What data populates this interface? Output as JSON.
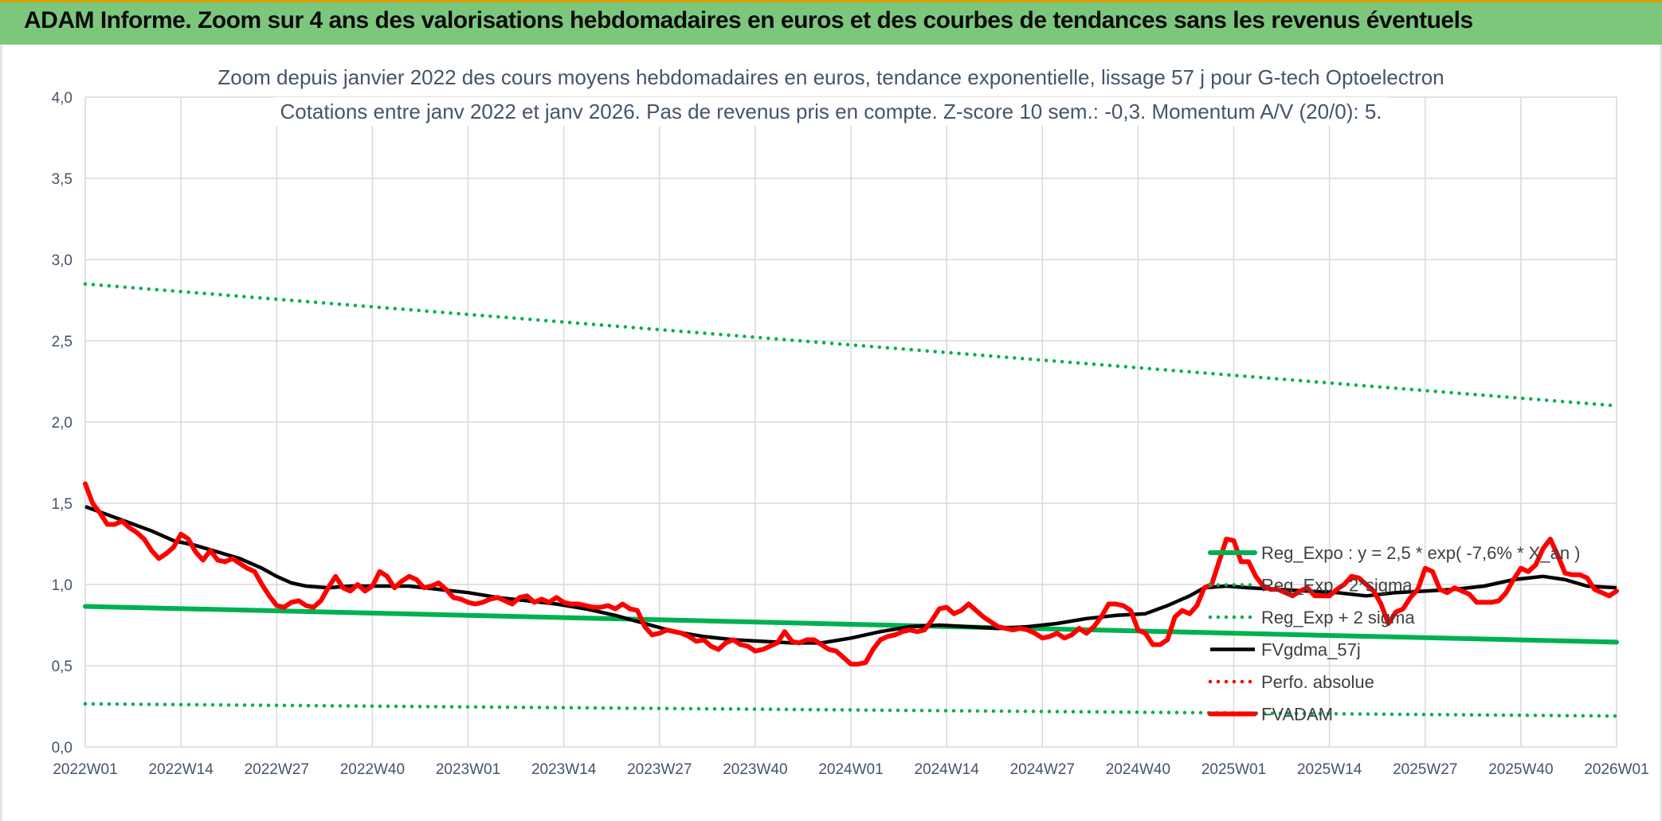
{
  "banner": {
    "title": "ADAM Informe. Zoom sur 4 ans des valorisations hebdomadaires en euros et des courbes de tendances sans les revenus éventuels"
  },
  "colors": {
    "regExpo": "#00b050",
    "fvgdma": "#000000",
    "perfo": "#ff0000",
    "fvadam": "#ff0000",
    "grid": "#d9d9d9",
    "banner": "#7dc77d"
  },
  "chart_data": {
    "type": "line",
    "title": [
      "Zoom depuis janvier 2022 des cours moyens hebdomadaires en euros, tendance exponentielle, lissage 57 j pour G-tech Optoelectron",
      "Cotations entre janv 2022 et janv 2026. Pas de revenus pris en compte. Z-score 10 sem.: -0,3. Momentum A/V (20/0): 5."
    ],
    "xlabel": "",
    "ylabel": "",
    "ylim": [
      0,
      4
    ],
    "yticks": [
      0,
      0.5,
      1,
      1.5,
      2,
      2.5,
      3,
      3.5,
      4
    ],
    "ytick_labels": [
      "0,0",
      "0,5",
      "1,0",
      "1,5",
      "2,0",
      "2,5",
      "3,0",
      "3,5",
      "4,0"
    ],
    "x_categories": [
      "2022W01",
      "2022W14",
      "2022W27",
      "2022W40",
      "2023W01",
      "2023W14",
      "2023W27",
      "2023W40",
      "2024W01",
      "2024W14",
      "2024W27",
      "2024W40",
      "2025W01",
      "2025W14",
      "2025W27",
      "2025W40",
      "2026W01"
    ],
    "x_weeks_total": 209,
    "grid": true,
    "legend_position": "right-middle",
    "series": [
      {
        "name": "Reg_Expo : y = 2,5 * exp( -7,6% * X_an )",
        "style": "solid",
        "color": "#00b050",
        "points": [
          [
            0,
            0.865
          ],
          [
            208,
            0.645
          ]
        ]
      },
      {
        "name": "Reg_Exp - 2*sigma",
        "style": "dotted",
        "color": "#00b050",
        "points": [
          [
            0,
            0.265
          ],
          [
            208,
            0.19
          ]
        ]
      },
      {
        "name": "Reg_Exp + 2 sigma",
        "style": "dotted",
        "color": "#00b050",
        "points": [
          [
            0,
            2.85
          ],
          [
            208,
            2.1
          ]
        ]
      },
      {
        "name": "FVgdma_57j",
        "style": "solid",
        "color": "#000000",
        "points": [
          [
            0,
            1.48
          ],
          [
            3,
            1.43
          ],
          [
            6,
            1.38
          ],
          [
            9,
            1.33
          ],
          [
            12,
            1.27
          ],
          [
            15,
            1.24
          ],
          [
            18,
            1.2
          ],
          [
            21,
            1.16
          ],
          [
            24,
            1.1
          ],
          [
            26,
            1.05
          ],
          [
            28,
            1.01
          ],
          [
            30,
            0.99
          ],
          [
            33,
            0.98
          ],
          [
            36,
            0.99
          ],
          [
            40,
            0.99
          ],
          [
            44,
            0.99
          ],
          [
            48,
            0.97
          ],
          [
            52,
            0.95
          ],
          [
            56,
            0.92
          ],
          [
            60,
            0.9
          ],
          [
            64,
            0.88
          ],
          [
            68,
            0.85
          ],
          [
            72,
            0.81
          ],
          [
            76,
            0.76
          ],
          [
            80,
            0.71
          ],
          [
            84,
            0.68
          ],
          [
            88,
            0.66
          ],
          [
            92,
            0.65
          ],
          [
            96,
            0.64
          ],
          [
            100,
            0.64
          ],
          [
            104,
            0.67
          ],
          [
            108,
            0.71
          ],
          [
            112,
            0.74
          ],
          [
            116,
            0.75
          ],
          [
            120,
            0.74
          ],
          [
            124,
            0.73
          ],
          [
            128,
            0.74
          ],
          [
            132,
            0.76
          ],
          [
            136,
            0.79
          ],
          [
            140,
            0.81
          ],
          [
            144,
            0.82
          ],
          [
            147,
            0.87
          ],
          [
            150,
            0.93
          ],
          [
            152,
            0.98
          ],
          [
            155,
            0.99
          ],
          [
            158,
            0.98
          ],
          [
            162,
            0.97
          ],
          [
            166,
            0.96
          ],
          [
            170,
            0.95
          ],
          [
            174,
            0.93
          ],
          [
            178,
            0.95
          ],
          [
            182,
            0.96
          ],
          [
            186,
            0.97
          ],
          [
            190,
            0.99
          ],
          [
            194,
            1.03
          ],
          [
            198,
            1.05
          ],
          [
            201,
            1.03
          ],
          [
            204,
            0.99
          ],
          [
            208,
            0.98
          ]
        ]
      },
      {
        "name": "Perfo. absolue",
        "style": "dotted",
        "color": "#ff0000",
        "points": []
      },
      {
        "name": "FVADAM",
        "style": "solid",
        "color": "#ff0000",
        "points": [
          [
            0,
            1.62
          ],
          [
            1,
            1.5
          ],
          [
            2,
            1.44
          ],
          [
            3,
            1.37
          ],
          [
            4,
            1.37
          ],
          [
            5,
            1.39
          ],
          [
            6,
            1.35
          ],
          [
            7,
            1.32
          ],
          [
            8,
            1.28
          ],
          [
            9,
            1.21
          ],
          [
            10,
            1.16
          ],
          [
            11,
            1.19
          ],
          [
            12,
            1.23
          ],
          [
            13,
            1.31
          ],
          [
            14,
            1.28
          ],
          [
            15,
            1.2
          ],
          [
            16,
            1.15
          ],
          [
            17,
            1.21
          ],
          [
            18,
            1.15
          ],
          [
            19,
            1.14
          ],
          [
            20,
            1.16
          ],
          [
            21,
            1.13
          ],
          [
            22,
            1.1
          ],
          [
            23,
            1.08
          ],
          [
            24,
            1.0
          ],
          [
            25,
            0.93
          ],
          [
            26,
            0.87
          ],
          [
            27,
            0.86
          ],
          [
            28,
            0.89
          ],
          [
            29,
            0.9
          ],
          [
            30,
            0.87
          ],
          [
            31,
            0.86
          ],
          [
            32,
            0.9
          ],
          [
            33,
            0.98
          ],
          [
            34,
            1.05
          ],
          [
            35,
            0.98
          ],
          [
            36,
            0.96
          ],
          [
            37,
            1.0
          ],
          [
            38,
            0.96
          ],
          [
            39,
            0.99
          ],
          [
            40,
            1.08
          ],
          [
            41,
            1.05
          ],
          [
            42,
            0.98
          ],
          [
            43,
            1.02
          ],
          [
            44,
            1.05
          ],
          [
            45,
            1.03
          ],
          [
            46,
            0.98
          ],
          [
            47,
            0.99
          ],
          [
            48,
            1.01
          ],
          [
            49,
            0.97
          ],
          [
            50,
            0.92
          ],
          [
            51,
            0.91
          ],
          [
            52,
            0.89
          ],
          [
            53,
            0.88
          ],
          [
            54,
            0.89
          ],
          [
            55,
            0.91
          ],
          [
            56,
            0.92
          ],
          [
            57,
            0.9
          ],
          [
            58,
            0.88
          ],
          [
            59,
            0.92
          ],
          [
            60,
            0.93
          ],
          [
            61,
            0.89
          ],
          [
            62,
            0.91
          ],
          [
            63,
            0.89
          ],
          [
            64,
            0.92
          ],
          [
            65,
            0.89
          ],
          [
            66,
            0.88
          ],
          [
            67,
            0.88
          ],
          [
            68,
            0.87
          ],
          [
            69,
            0.86
          ],
          [
            70,
            0.86
          ],
          [
            71,
            0.87
          ],
          [
            72,
            0.85
          ],
          [
            73,
            0.88
          ],
          [
            74,
            0.85
          ],
          [
            75,
            0.84
          ],
          [
            76,
            0.74
          ],
          [
            77,
            0.69
          ],
          [
            78,
            0.7
          ],
          [
            79,
            0.72
          ],
          [
            80,
            0.71
          ],
          [
            81,
            0.7
          ],
          [
            82,
            0.68
          ],
          [
            83,
            0.65
          ],
          [
            84,
            0.66
          ],
          [
            85,
            0.62
          ],
          [
            86,
            0.6
          ],
          [
            87,
            0.64
          ],
          [
            88,
            0.66
          ],
          [
            89,
            0.63
          ],
          [
            90,
            0.62
          ],
          [
            91,
            0.59
          ],
          [
            92,
            0.6
          ],
          [
            93,
            0.62
          ],
          [
            94,
            0.64
          ],
          [
            95,
            0.71
          ],
          [
            96,
            0.65
          ],
          [
            97,
            0.64
          ],
          [
            98,
            0.66
          ],
          [
            99,
            0.66
          ],
          [
            100,
            0.63
          ],
          [
            101,
            0.6
          ],
          [
            102,
            0.59
          ],
          [
            103,
            0.55
          ],
          [
            104,
            0.51
          ],
          [
            105,
            0.51
          ],
          [
            106,
            0.52
          ],
          [
            107,
            0.6
          ],
          [
            108,
            0.66
          ],
          [
            109,
            0.68
          ],
          [
            110,
            0.69
          ],
          [
            111,
            0.71
          ],
          [
            112,
            0.72
          ],
          [
            113,
            0.71
          ],
          [
            114,
            0.72
          ],
          [
            115,
            0.78
          ],
          [
            116,
            0.85
          ],
          [
            117,
            0.86
          ],
          [
            118,
            0.82
          ],
          [
            119,
            0.84
          ],
          [
            120,
            0.88
          ],
          [
            121,
            0.84
          ],
          [
            122,
            0.8
          ],
          [
            123,
            0.77
          ],
          [
            124,
            0.74
          ],
          [
            125,
            0.73
          ],
          [
            126,
            0.72
          ],
          [
            127,
            0.73
          ],
          [
            128,
            0.72
          ],
          [
            129,
            0.7
          ],
          [
            130,
            0.67
          ],
          [
            131,
            0.68
          ],
          [
            132,
            0.7
          ],
          [
            133,
            0.67
          ],
          [
            134,
            0.69
          ],
          [
            135,
            0.73
          ],
          [
            136,
            0.7
          ],
          [
            137,
            0.74
          ],
          [
            138,
            0.8
          ],
          [
            139,
            0.88
          ],
          [
            140,
            0.88
          ],
          [
            141,
            0.87
          ],
          [
            142,
            0.84
          ],
          [
            143,
            0.72
          ],
          [
            144,
            0.7
          ],
          [
            145,
            0.63
          ],
          [
            146,
            0.63
          ],
          [
            147,
            0.66
          ],
          [
            148,
            0.8
          ],
          [
            149,
            0.84
          ],
          [
            150,
            0.82
          ],
          [
            151,
            0.87
          ],
          [
            152,
            0.98
          ],
          [
            153,
            1.0
          ],
          [
            154,
            1.14
          ],
          [
            155,
            1.28
          ],
          [
            156,
            1.27
          ],
          [
            157,
            1.14
          ],
          [
            158,
            1.14
          ],
          [
            159,
            1.05
          ],
          [
            160,
            0.99
          ],
          [
            161,
            0.97
          ],
          [
            162,
            0.97
          ],
          [
            163,
            0.95
          ],
          [
            164,
            0.93
          ],
          [
            165,
            0.96
          ],
          [
            166,
            0.98
          ],
          [
            167,
            0.93
          ],
          [
            168,
            0.93
          ],
          [
            169,
            0.93
          ],
          [
            170,
            0.97
          ],
          [
            171,
            1.0
          ],
          [
            172,
            1.05
          ],
          [
            173,
            1.04
          ],
          [
            174,
            1.0
          ],
          [
            175,
            0.96
          ],
          [
            176,
            0.88
          ],
          [
            177,
            0.76
          ],
          [
            178,
            0.83
          ],
          [
            179,
            0.85
          ],
          [
            180,
            0.92
          ],
          [
            181,
            0.97
          ],
          [
            182,
            1.1
          ],
          [
            183,
            1.08
          ],
          [
            184,
            0.97
          ],
          [
            185,
            0.95
          ],
          [
            186,
            0.98
          ],
          [
            187,
            0.96
          ],
          [
            188,
            0.94
          ],
          [
            189,
            0.89
          ],
          [
            190,
            0.89
          ],
          [
            191,
            0.89
          ],
          [
            192,
            0.9
          ],
          [
            193,
            0.95
          ],
          [
            194,
            1.03
          ],
          [
            195,
            1.1
          ],
          [
            196,
            1.08
          ],
          [
            197,
            1.12
          ],
          [
            198,
            1.22
          ],
          [
            199,
            1.28
          ],
          [
            200,
            1.18
          ],
          [
            201,
            1.07
          ],
          [
            202,
            1.06
          ],
          [
            203,
            1.06
          ],
          [
            204,
            1.04
          ],
          [
            205,
            0.97
          ],
          [
            206,
            0.95
          ],
          [
            207,
            0.93
          ],
          [
            208,
            0.96
          ]
        ]
      }
    ]
  }
}
